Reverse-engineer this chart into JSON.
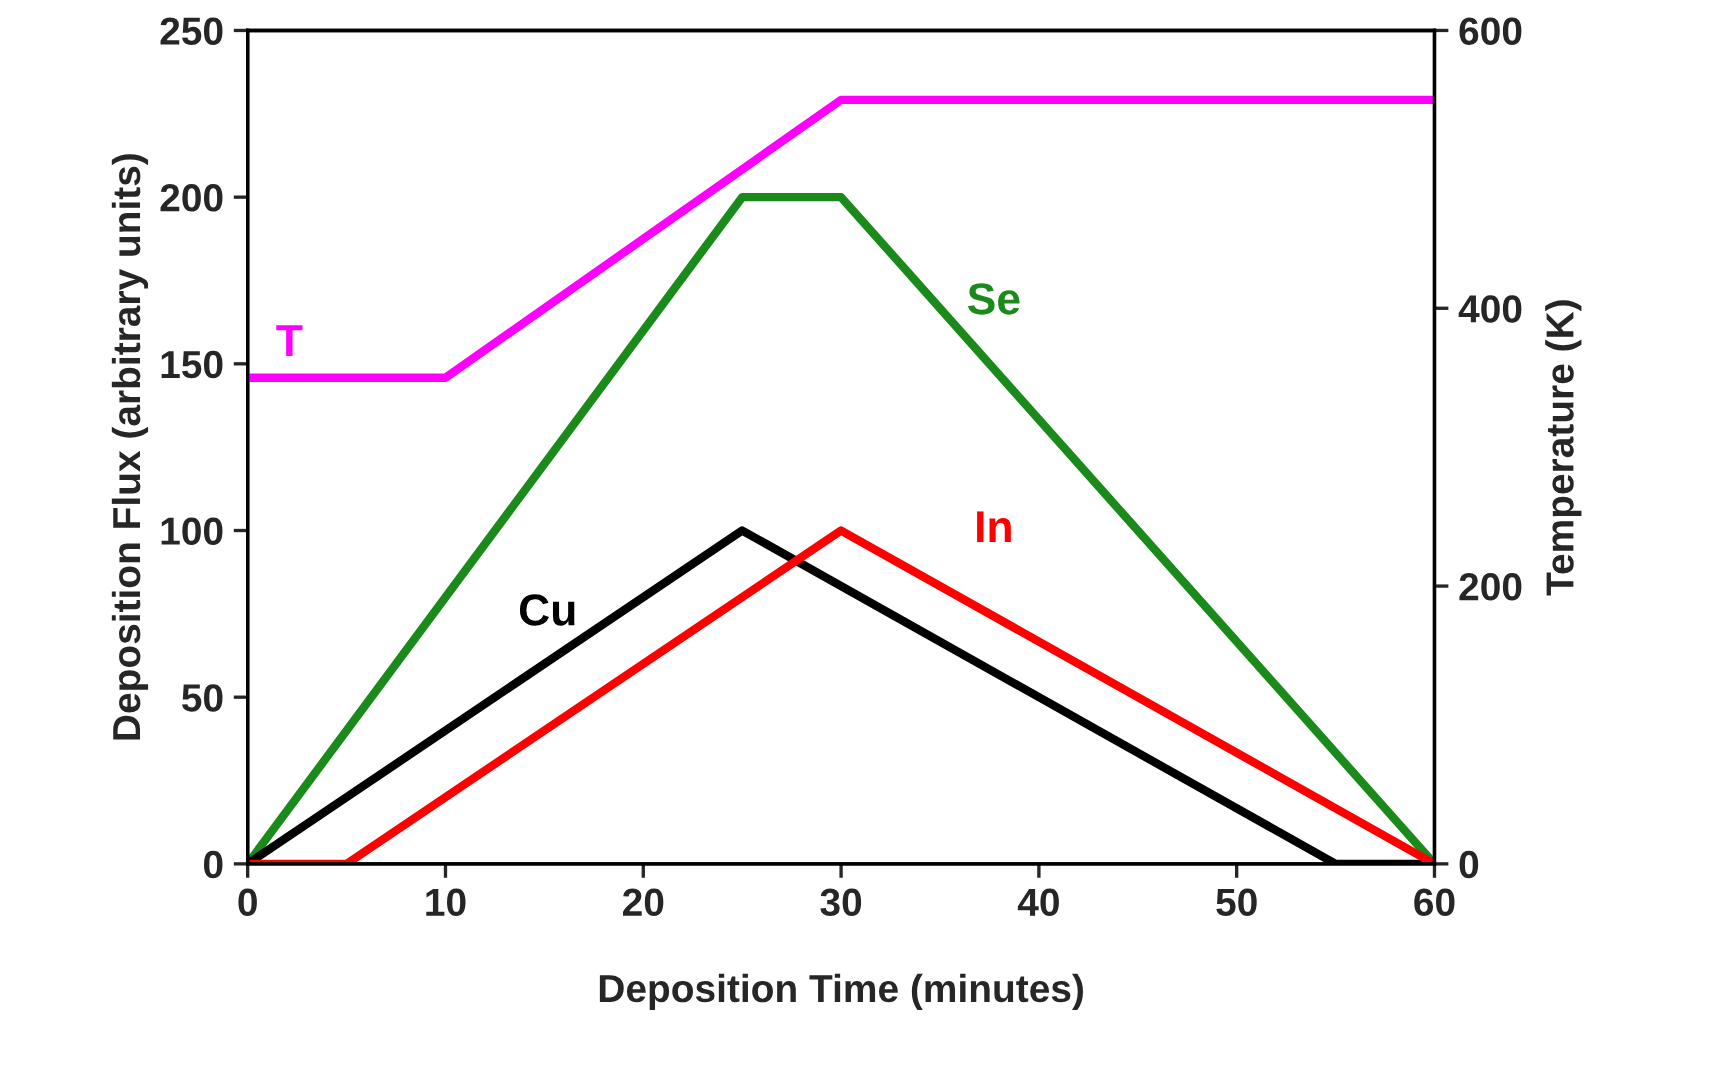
{
  "chart_data": {
    "type": "line",
    "xlabel": "Deposition Time (minutes)",
    "ylabel": "Deposition Flux (arbitrary units)",
    "y2label": "Temperature (K)",
    "xlim": [
      0,
      60
    ],
    "xticks": [
      0,
      10,
      20,
      30,
      40,
      50,
      60
    ],
    "ylim": [
      0,
      250
    ],
    "yticks": [
      0,
      50,
      100,
      150,
      200,
      250
    ],
    "y2lim": [
      0,
      600
    ],
    "y2ticks": [
      0,
      200,
      400,
      600
    ],
    "grid": false,
    "legend": false,
    "series": [
      {
        "name": "T",
        "color": "#ff00ff",
        "axis": "y2",
        "x": [
          0,
          10,
          30,
          60
        ],
        "values": [
          350,
          350,
          550,
          550
        ]
      },
      {
        "name": "Se",
        "color": "#1a8a1a",
        "x": [
          0,
          25,
          30,
          60
        ],
        "values": [
          0,
          200,
          200,
          0
        ]
      },
      {
        "name": "Cu",
        "color": "#000000",
        "x": [
          0,
          25,
          55,
          60
        ],
        "values": [
          0,
          100,
          0,
          0
        ]
      },
      {
        "name": "In",
        "color": "#ff0000",
        "x": [
          0,
          5,
          30,
          60
        ],
        "values": [
          0,
          0,
          100,
          0
        ]
      }
    ]
  }
}
